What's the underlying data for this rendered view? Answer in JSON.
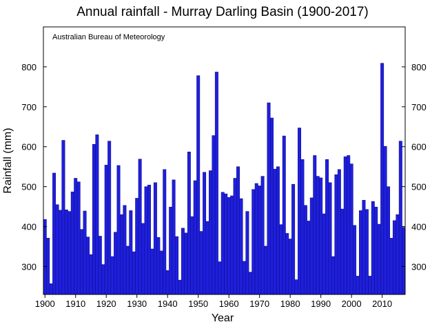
{
  "chart_data": {
    "type": "bar",
    "title": "Annual rainfall - Murray Darling Basin (1900-2017)",
    "annotation": "Australian Bureau of Meteorology",
    "xlabel": "Year",
    "ylabel": "Rainfall (mm)",
    "xlim": [
      1899.5,
      2017.5
    ],
    "ylim": [
      230,
      900
    ],
    "x_ticks": [
      1900,
      1910,
      1920,
      1930,
      1940,
      1950,
      1960,
      1970,
      1980,
      1990,
      2000,
      2010
    ],
    "y_ticks": [
      300,
      400,
      500,
      600,
      700,
      800
    ],
    "grid": false,
    "bar_color": "#1f1fdc",
    "bar_edge_color": "#0a0a80",
    "x": [
      1900,
      1901,
      1902,
      1903,
      1904,
      1905,
      1906,
      1907,
      1908,
      1909,
      1910,
      1911,
      1912,
      1913,
      1914,
      1915,
      1916,
      1917,
      1918,
      1919,
      1920,
      1921,
      1922,
      1923,
      1924,
      1925,
      1926,
      1927,
      1928,
      1929,
      1930,
      1931,
      1932,
      1933,
      1934,
      1935,
      1936,
      1937,
      1938,
      1939,
      1940,
      1941,
      1942,
      1943,
      1944,
      1945,
      1946,
      1947,
      1948,
      1949,
      1950,
      1951,
      1952,
      1953,
      1954,
      1955,
      1956,
      1957,
      1958,
      1959,
      1960,
      1961,
      1962,
      1963,
      1964,
      1965,
      1966,
      1967,
      1968,
      1969,
      1970,
      1971,
      1972,
      1973,
      1974,
      1975,
      1976,
      1977,
      1978,
      1979,
      1980,
      1981,
      1982,
      1983,
      1984,
      1985,
      1986,
      1987,
      1988,
      1989,
      1990,
      1991,
      1992,
      1993,
      1994,
      1995,
      1996,
      1997,
      1998,
      1999,
      2000,
      2001,
      2002,
      2003,
      2004,
      2005,
      2006,
      2007,
      2008,
      2009,
      2010,
      2011,
      2012,
      2013,
      2014,
      2015,
      2016,
      2017
    ],
    "values": [
      418,
      371,
      257,
      534,
      455,
      441,
      616,
      442,
      438,
      487,
      521,
      512,
      393,
      439,
      374,
      330,
      606,
      630,
      376,
      305,
      554,
      614,
      325,
      386,
      553,
      430,
      453,
      351,
      440,
      337,
      471,
      569,
      408,
      500,
      504,
      344,
      510,
      373,
      339,
      543,
      290,
      449,
      517,
      375,
      266,
      396,
      384,
      587,
      425,
      515,
      778,
      388,
      536,
      413,
      540,
      628,
      787,
      312,
      486,
      482,
      473,
      477,
      521,
      550,
      470,
      313,
      438,
      286,
      493,
      508,
      502,
      526,
      351,
      710,
      672,
      544,
      550,
      405,
      627,
      383,
      369,
      506,
      267,
      647,
      568,
      453,
      414,
      472,
      578,
      526,
      522,
      432,
      568,
      510,
      325,
      530,
      543,
      444,
      575,
      578,
      557,
      403,
      276,
      440,
      466,
      443,
      276,
      463,
      449,
      406,
      809,
      601,
      500,
      371,
      415,
      430,
      614,
      398
    ]
  }
}
